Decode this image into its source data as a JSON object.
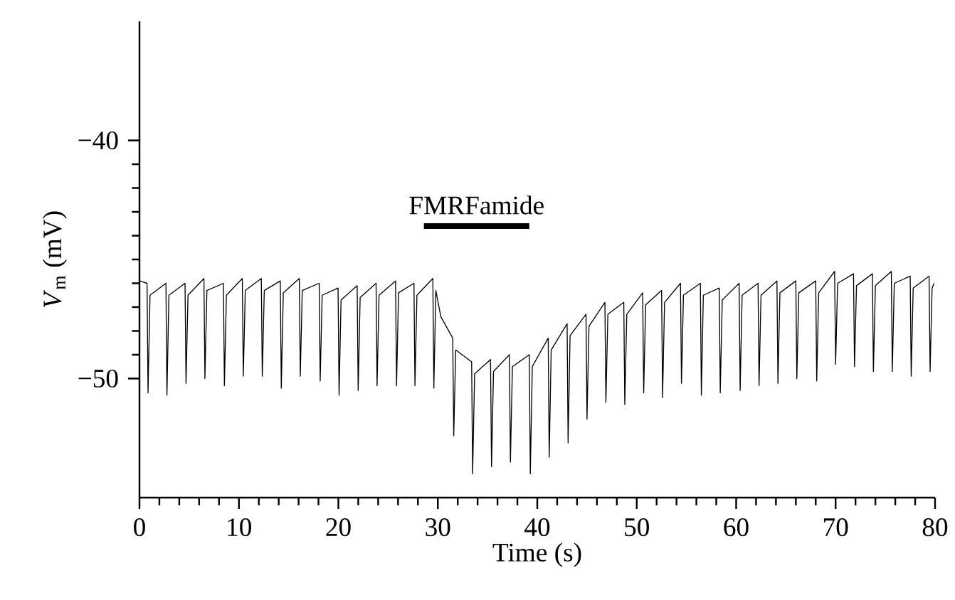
{
  "chart_data": {
    "type": "line",
    "xlabel": "Time (s)",
    "ylabel": "*V*$_{m}$ (mV)",
    "xlim": [
      0,
      80
    ],
    "ylim": [
      -55,
      -35
    ],
    "xticks": [
      0,
      10,
      20,
      30,
      40,
      50,
      60,
      70,
      80
    ],
    "yticks": [
      {
        "value": -50,
        "label": "−50"
      },
      {
        "value": -40,
        "label": "−40"
      }
    ],
    "grid": false,
    "marker": "none",
    "line_style": "solid",
    "annotations": [
      {
        "text": "FMRFamide",
        "x": 33.9,
        "y": -43.6
      }
    ],
    "series": [
      {
        "color": "#000000",
        "x": [
          0,
          0.76,
          0.86,
          1.06,
          2.66,
          2.76,
          2.96,
          4.58,
          4.68,
          4.88,
          6.48,
          6.58,
          6.78,
          8.44,
          8.54,
          8.74,
          10.34,
          10.44,
          10.64,
          12.25,
          12.35,
          12.55,
          14.16,
          14.26,
          14.46,
          16.07,
          16.17,
          16.37,
          18.07,
          18.17,
          18.37,
          19.97,
          20.07,
          20.27,
          21.89,
          21.99,
          22.19,
          23.79,
          23.89,
          24.09,
          25.75,
          25.85,
          26.05,
          27.6,
          27.7,
          27.9,
          29.5,
          29.6,
          29.8,
          30.3,
          31.5,
          31.6,
          31.8,
          33.4,
          33.5,
          33.7,
          35.3,
          35.4,
          35.6,
          37.2,
          37.3,
          37.5,
          39.2,
          39.3,
          39.5,
          41.1,
          41.2,
          41.4,
          43.0,
          43.1,
          43.3,
          44.9,
          45.0,
          45.2,
          46.8,
          46.9,
          47.1,
          48.7,
          48.8,
          49.0,
          50.6,
          50.7,
          50.9,
          52.5,
          52.6,
          52.8,
          54.4,
          54.5,
          54.7,
          56.4,
          56.5,
          56.7,
          58.3,
          58.4,
          58.6,
          60.3,
          60.4,
          60.6,
          62.2,
          62.3,
          62.5,
          64.1,
          64.2,
          64.4,
          66.0,
          66.1,
          66.3,
          68.0,
          68.1,
          68.3,
          69.9,
          70.0,
          70.2,
          71.8,
          71.9,
          72.1,
          73.7,
          73.8,
          74.0,
          75.6,
          75.7,
          75.9,
          77.5,
          77.6,
          77.8,
          79.4,
          79.5,
          79.7,
          79.9
        ],
        "values": [
          -45.9,
          -46.0,
          -50.6,
          -46.5,
          -46.0,
          -50.7,
          -46.5,
          -46.0,
          -50.2,
          -46.5,
          -45.8,
          -50.0,
          -46.3,
          -46.0,
          -50.3,
          -46.5,
          -45.8,
          -49.9,
          -46.3,
          -45.8,
          -49.9,
          -46.3,
          -45.9,
          -50.4,
          -46.4,
          -45.8,
          -49.9,
          -46.3,
          -46.0,
          -50.1,
          -46.5,
          -46.2,
          -50.7,
          -46.7,
          -46.1,
          -50.5,
          -46.6,
          -46.0,
          -50.3,
          -46.5,
          -45.9,
          -50.3,
          -46.4,
          -46.0,
          -50.3,
          -46.5,
          -45.8,
          -50.4,
          -46.3,
          -47.4,
          -48.3,
          -52.4,
          -48.8,
          -49.3,
          -54.0,
          -49.8,
          -49.2,
          -53.7,
          -49.7,
          -49.0,
          -53.5,
          -49.5,
          -49.0,
          -54.0,
          -49.5,
          -48.3,
          -53.3,
          -48.8,
          -47.7,
          -52.7,
          -48.2,
          -47.3,
          -51.7,
          -47.8,
          -46.8,
          -51.0,
          -47.3,
          -46.8,
          -51.1,
          -47.3,
          -46.4,
          -50.6,
          -46.9,
          -46.3,
          -50.8,
          -46.8,
          -46.0,
          -50.2,
          -46.5,
          -46.0,
          -50.7,
          -46.5,
          -46.2,
          -50.6,
          -46.7,
          -46.0,
          -50.5,
          -46.5,
          -46.0,
          -50.3,
          -46.5,
          -45.9,
          -50.2,
          -46.4,
          -45.9,
          -50.0,
          -46.4,
          -45.9,
          -50.1,
          -46.4,
          -45.5,
          -49.4,
          -46.0,
          -45.6,
          -49.5,
          -46.1,
          -45.6,
          -49.7,
          -46.1,
          -45.5,
          -49.7,
          -46.0,
          -45.7,
          -49.9,
          -46.2,
          -45.7,
          -49.7,
          -46.2,
          -46.0
        ]
      },
      {
        "color": "#000000",
        "x": [
          28.6,
          39.2
        ],
        "values": [
          -43.6,
          -43.6
        ]
      }
    ]
  }
}
